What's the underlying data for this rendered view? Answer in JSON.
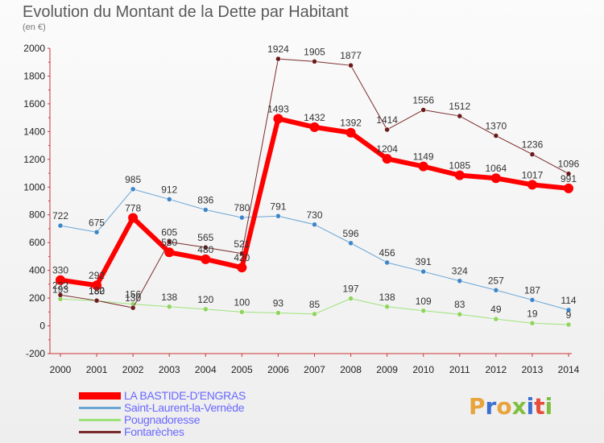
{
  "title": "Evolution du Montant de la Dette par Habitant",
  "unit_label": "(en €)",
  "logo_text": "Proxiti",
  "logo_colors": [
    "#e8a33b",
    "#3b6fd0",
    "#e8a33b",
    "#7fbf3f",
    "#3b6fd0",
    "#e84b3b",
    "#7fbf3f"
  ],
  "chart_data": {
    "type": "line",
    "x": [
      2000,
      2001,
      2002,
      2003,
      2004,
      2005,
      2006,
      2007,
      2008,
      2009,
      2010,
      2011,
      2012,
      2013,
      2014
    ],
    "yticks": [
      -200,
      0,
      200,
      400,
      600,
      800,
      1000,
      1200,
      1400,
      1600,
      1800,
      2000
    ],
    "ylim": [
      -200,
      2000
    ],
    "grid": false,
    "legend_position": "bottom-left",
    "series": [
      {
        "name": "LA BASTIDE-D'ENGRAS",
        "color": "#ff0000",
        "marker": "#ff0000",
        "width": 6,
        "values": [
          330,
          292,
          778,
          530,
          480,
          420,
          1493,
          1432,
          1392,
          1204,
          1149,
          1085,
          1064,
          1017,
          991
        ],
        "labels": [
          "330",
          "292",
          "778",
          "530",
          "480",
          "420",
          "1493",
          "1432",
          "1392",
          "1204",
          "1149",
          "1085",
          "1064",
          "1017",
          "991"
        ]
      },
      {
        "name": "Saint-Laurent-la-Vernède",
        "color": "#6aa6d6",
        "marker": "#3f86c8",
        "width": 1,
        "values": [
          722,
          675,
          985,
          912,
          836,
          780,
          791,
          730,
          596,
          456,
          391,
          324,
          257,
          187,
          114
        ],
        "labels": [
          "722",
          "675",
          "985",
          "912",
          "836",
          "780",
          "791",
          "730",
          "596",
          "456",
          "391",
          "324",
          "257",
          "187",
          "114"
        ]
      },
      {
        "name": "Pougnadoresse",
        "color": "#9ee37a",
        "marker": "#8fd45f",
        "width": 1,
        "values": [
          193,
          180,
          156,
          138,
          120,
          100,
          93,
          85,
          197,
          138,
          109,
          83,
          49,
          19,
          9
        ],
        "labels": [
          "193",
          "180",
          "156",
          "138",
          "120",
          "100",
          "93",
          "85",
          "197",
          "138",
          "109",
          "83",
          "49",
          "19",
          "9"
        ]
      },
      {
        "name": "Fontarèches",
        "color": "#7a2a2a",
        "marker": "#6a1a1a",
        "width": 1,
        "values": [
          222,
          182,
          130,
          605,
          565,
          521,
          1924,
          1905,
          1877,
          1414,
          1556,
          1512,
          1370,
          1236,
          1096
        ],
        "labels": [
          "222",
          "182",
          "130",
          "605",
          "565",
          "521",
          "1924",
          "1905",
          "1877",
          "1414",
          "1556",
          "1512",
          "1370",
          "1236",
          "1096"
        ]
      }
    ]
  }
}
